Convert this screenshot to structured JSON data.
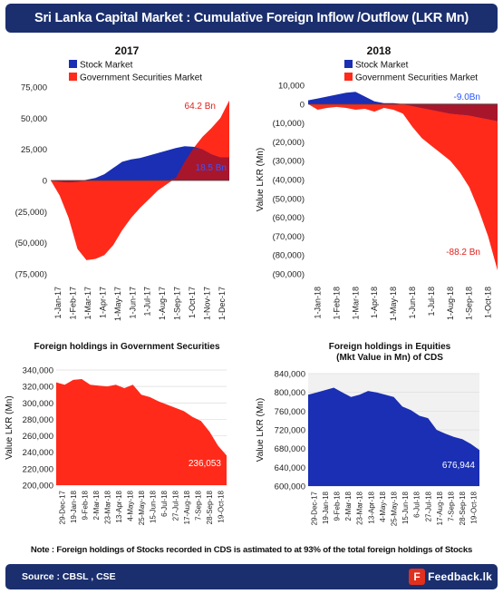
{
  "header": {
    "title": "Sri Lanka Capital Market : Cumulative Foreign Inflow /Outflow  (LKR Mn)"
  },
  "footer": {
    "source": "Source : CBSL , CSE",
    "logo_text": "Feedback.lk"
  },
  "note": "Note : Foreign holdings of Stocks recorded in CDS is astimated to at 93% of the total foreign holdings of Stocks",
  "colors": {
    "stock": "#1a2fb3",
    "govsec": "#ff2a1a",
    "overlap": "#a8162c",
    "banner": "#1b2f6e"
  },
  "chart_data": [
    {
      "type": "area",
      "title": "2017",
      "ylabel": "",
      "legend": {
        "position": "top",
        "entries": [
          "Stock Market",
          "Government Securities Market"
        ]
      },
      "ylim": [
        -75000,
        75000
      ],
      "yticks": [
        -75000,
        -50000,
        -25000,
        0,
        25000,
        50000,
        75000
      ],
      "ytick_labels": [
        "(75,000)",
        "(50,000)",
        "(25,000)",
        "0",
        "25,000",
        "50,000",
        "75,000"
      ],
      "xtick_labels": [
        "1-Jan-17",
        "1-Feb-17",
        "1-Mar-17",
        "1-Apr-17",
        "1-May-17",
        "1-Jun-17",
        "1-Jul-17",
        "1-Aug-17",
        "1-Sep-17",
        "1-Oct-17",
        "1-Nov-17",
        "1-Dec-17"
      ],
      "x": [
        0,
        0.05,
        0.1,
        0.15,
        0.2,
        0.25,
        0.3,
        0.35,
        0.4,
        0.45,
        0.5,
        0.55,
        0.6,
        0.65,
        0.7,
        0.75,
        0.8,
        0.85,
        0.9,
        0.95,
        1.0
      ],
      "series": [
        {
          "name": "Stock Market",
          "values": [
            0,
            -1000,
            -1500,
            -1000,
            500,
            2000,
            5000,
            10000,
            15000,
            17000,
            18000,
            20000,
            22000,
            24000,
            26000,
            27500,
            27000,
            25000,
            21000,
            18500,
            18500
          ]
        },
        {
          "name": "Government Securities Market",
          "values": [
            0,
            -12000,
            -30000,
            -55000,
            -64000,
            -63000,
            -60000,
            -52000,
            -40000,
            -30000,
            -22000,
            -15000,
            -8000,
            -3000,
            2000,
            15000,
            26000,
            35000,
            42000,
            50000,
            64200
          ]
        }
      ],
      "annotations": [
        {
          "text": "64.2 Bn",
          "series": "Government Securities Market"
        },
        {
          "text": "18.5 Bn",
          "series": "Stock Market"
        }
      ]
    },
    {
      "type": "area",
      "title": "2018",
      "ylabel": "Value LKR (Mn)",
      "legend": {
        "position": "top",
        "entries": [
          "Stock Market",
          "Government Securities Market"
        ]
      },
      "ylim": [
        -90000,
        10000
      ],
      "yticks": [
        -90000,
        -80000,
        -70000,
        -60000,
        -50000,
        -40000,
        -30000,
        -20000,
        -10000,
        0,
        10000
      ],
      "ytick_labels": [
        "(90,000)",
        "(80,000)",
        "(70,000)",
        "(60,000)",
        "(50,000)",
        "(40,000)",
        "(30,000)",
        "(20,000)",
        "(10,000)",
        "0",
        "10,000"
      ],
      "xtick_labels": [
        "1-Jan-18",
        "1-Feb-18",
        "1-Mar-18",
        "1-Apr-18",
        "1-May-18",
        "1-Jun-18",
        "1-Jul-18",
        "1-Aug-18",
        "1-Sep-18",
        "1-Oct-18"
      ],
      "x": [
        0,
        0.05,
        0.1,
        0.15,
        0.2,
        0.25,
        0.3,
        0.35,
        0.4,
        0.45,
        0.5,
        0.55,
        0.6,
        0.65,
        0.7,
        0.75,
        0.8,
        0.85,
        0.9,
        0.95,
        1.0
      ],
      "series": [
        {
          "name": "Stock Market",
          "values": [
            2000,
            3000,
            4000,
            5000,
            6000,
            6500,
            4000,
            1500,
            500,
            500,
            0,
            -1000,
            -2000,
            -3000,
            -4000,
            -5000,
            -5500,
            -6000,
            -7000,
            -8000,
            -9000
          ]
        },
        {
          "name": "Government Securities Market",
          "values": [
            0,
            -3000,
            -2000,
            -1500,
            -2000,
            -3000,
            -2500,
            -4000,
            -2000,
            -3000,
            -5000,
            -12000,
            -18000,
            -22000,
            -26000,
            -30000,
            -36000,
            -44000,
            -56000,
            -70000,
            -88200
          ]
        }
      ],
      "annotations": [
        {
          "text": "-9.0Bn",
          "series": "Stock Market"
        },
        {
          "text": "-88.2 Bn",
          "series": "Government Securities Market"
        }
      ]
    },
    {
      "type": "area",
      "title": "Foreign holdings in Government Securities",
      "ylabel": "Value LKR (Mn)",
      "ylim": [
        200000,
        340000
      ],
      "yticks": [
        200000,
        220000,
        240000,
        260000,
        280000,
        300000,
        320000,
        340000
      ],
      "ytick_labels": [
        "200,000",
        "220,000",
        "240,000",
        "260,000",
        "280,000",
        "300,000",
        "320,000",
        "340,000"
      ],
      "xtick_labels": [
        "29-Dec-17",
        "19-Jan-18",
        "9-Feb-18",
        "2-Mar-18",
        "23-Mar-18",
        "13-Apr-18",
        "4-May-18",
        "25-May-18",
        "15-Jun-18",
        "6-Jul-18",
        "27-Jul-18",
        "17-Aug-18",
        "7-Sep-18",
        "28-Sep-18",
        "19-Oct-18"
      ],
      "x": [
        0,
        0.05,
        0.1,
        0.15,
        0.2,
        0.25,
        0.3,
        0.35,
        0.4,
        0.45,
        0.5,
        0.55,
        0.6,
        0.65,
        0.7,
        0.75,
        0.8,
        0.85,
        0.9,
        0.95,
        1.0
      ],
      "series": [
        {
          "name": "",
          "values": [
            325000,
            322000,
            328000,
            329000,
            322000,
            321000,
            320000,
            322000,
            318000,
            322000,
            310000,
            307000,
            302000,
            298000,
            294000,
            290000,
            283000,
            278000,
            265000,
            248000,
            236053
          ]
        }
      ],
      "annotations": [
        {
          "text": "236,053"
        }
      ]
    },
    {
      "type": "area",
      "title": "Foreign holdings in Equities (Mkt Value in Mn) of CDS",
      "ylabel": "Value LKR (Mn)",
      "ylim": [
        600000,
        840000
      ],
      "yticks": [
        600000,
        640000,
        680000,
        720000,
        760000,
        800000,
        840000
      ],
      "ytick_labels": [
        "600,000",
        "640,000",
        "680,000",
        "720,000",
        "760,000",
        "800,000",
        "840,000"
      ],
      "xtick_labels": [
        "29-Dec-17",
        "19-Jan-18",
        "9-Feb-18",
        "2-Mar-18",
        "23-Mar-18",
        "13-Apr-18",
        "4-May-18",
        "25-May-18",
        "15-Jun-18",
        "6-Jul-18",
        "27-Jul-18",
        "17-Aug-18",
        "7-Sep-18",
        "28-Sep-18",
        "19-Oct-18"
      ],
      "x": [
        0,
        0.05,
        0.1,
        0.15,
        0.2,
        0.25,
        0.3,
        0.35,
        0.4,
        0.45,
        0.5,
        0.55,
        0.6,
        0.65,
        0.7,
        0.75,
        0.8,
        0.85,
        0.9,
        0.95,
        1.0
      ],
      "series": [
        {
          "name": "",
          "values": [
            795000,
            800000,
            805000,
            810000,
            800000,
            790000,
            795000,
            803000,
            800000,
            795000,
            790000,
            770000,
            762000,
            750000,
            745000,
            720000,
            712000,
            705000,
            700000,
            690000,
            676944
          ]
        }
      ],
      "annotations": [
        {
          "text": "676,944"
        }
      ]
    }
  ]
}
